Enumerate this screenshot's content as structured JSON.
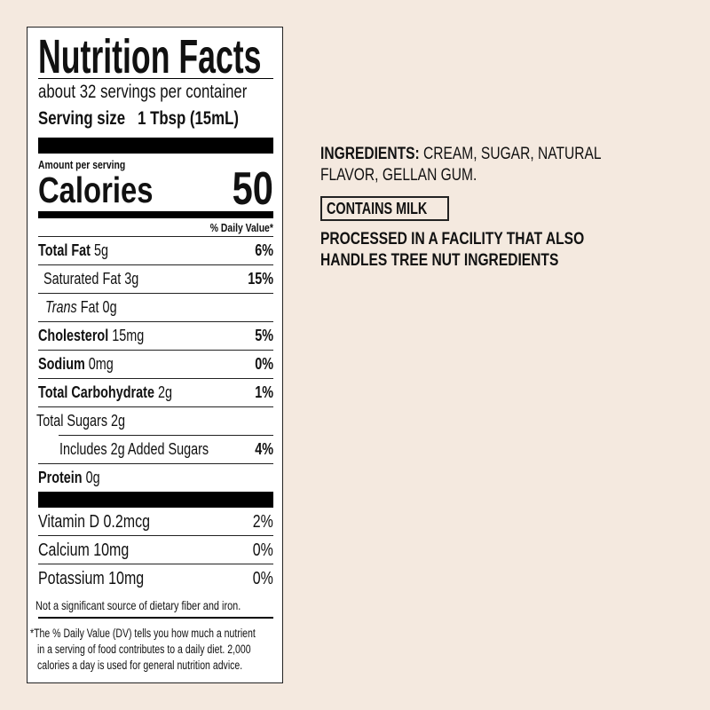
{
  "nutrition_facts": {
    "title": "Nutrition Facts",
    "servings_per_container": "about 32 servings per container",
    "serving_size_label": "Serving size",
    "serving_size_value": "1 Tbsp (15mL)",
    "amount_per_serving": "Amount per serving",
    "calories_label": "Calories",
    "calories_value": "50",
    "daily_value_header": "% Daily Value*",
    "nutrients": [
      {
        "name": "Total Fat",
        "amount": " 5g",
        "dv": "6%"
      },
      {
        "name": "Saturated Fat 3g",
        "dv": "15%"
      },
      {
        "name_italic": "Trans",
        "name": " Fat 0g",
        "dv": ""
      },
      {
        "name": "Cholesterol",
        "amount": " 15mg",
        "dv": "5%"
      },
      {
        "name": "Sodium",
        "amount": " 0mg",
        "dv": "0%"
      },
      {
        "name": "Total Carbohydrate",
        "amount": " 2g",
        "dv": "1%"
      },
      {
        "name": "Total Sugars 2g",
        "dv": ""
      },
      {
        "name": "Includes 2g Added Sugars",
        "dv": "4%"
      },
      {
        "name": "Protein",
        "amount": " 0g",
        "dv": ""
      }
    ],
    "vitamins": [
      {
        "name": "Vitamin D 0.2mcg",
        "dv": "2%"
      },
      {
        "name": "Calcium 10mg",
        "dv": "0%"
      },
      {
        "name": "Potassium 10mg",
        "dv": "0%"
      }
    ],
    "not_significant": "Not a significant source of dietary fiber and iron.",
    "footnote": [
      "*The % Daily Value (DV) tells you how much a nutrient",
      "in a serving of food contributes to a daily diet. 2,000",
      "calories a day is used for general nutrition advice."
    ]
  },
  "ingredients": {
    "label": "INGREDIENTS:",
    "line1": " CREAM, SUGAR, NATURAL",
    "line2": "FLAVOR, GELLAN GUM.",
    "allergen_badge": "CONTAINS MILK",
    "facility_line1": "PROCESSED IN A FACILITY THAT ALSO",
    "facility_line2": "HANDLES TREE NUT INGREDIENTS"
  }
}
